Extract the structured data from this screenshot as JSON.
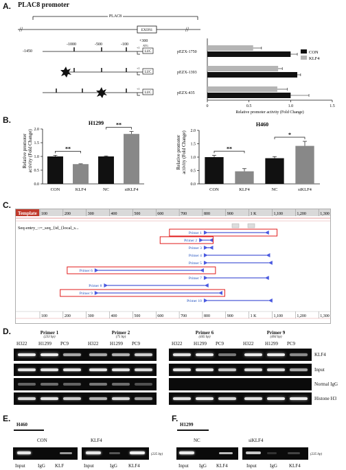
{
  "panel_a": {
    "label": "A.",
    "title": "PLAC8 promoter",
    "gene_label": "PLAC8",
    "exon_label": "EXON1",
    "positions": [
      "-1450",
      "-1000",
      "-500",
      "-100",
      "+300"
    ],
    "atg_label": "ATG",
    "tss_label": "+1",
    "luc_label": "LUC",
    "constructs": [
      "pEZX-1750",
      "pEZX-1393",
      "pEZX-435"
    ],
    "chart": {
      "xlabel": "Relative promoter activity (Fold Change)",
      "xticks": [
        "0",
        "0.5",
        "1.0",
        "1.5"
      ],
      "legend": [
        "CON",
        "KLF4"
      ]
    }
  },
  "panel_b": {
    "label": "B.",
    "ylabel_line1": "Relative promoter",
    "ylabel_line2": "activity (Fold Change)",
    "sig": "**",
    "sig2": "*"
  },
  "panel_c": {
    "label": "C.",
    "template_label": "Template",
    "ruler_ticks": [
      "100",
      "200",
      "300",
      "400",
      "500",
      "600",
      "700",
      "800",
      "900",
      "1 K",
      "1,100",
      "1,200",
      "1,300"
    ],
    "seq_entry": "Seq-entry_::=_seq_{id_{local_s...",
    "primers": [
      "Primer 1",
      "Primer 2",
      "Primer 3",
      "Primer 4",
      "Primer 5",
      "Primer 6",
      "Primer 7",
      "Primer 8",
      "Primer 9",
      "Primer 10"
    ]
  },
  "panel_d": {
    "label": "D.",
    "groups": [
      {
        "title": "Primer 1",
        "size": "(233 bp)"
      },
      {
        "title": "Primer 2",
        "size": "(75 bp)"
      },
      {
        "title": "Primer 6",
        "size": "(445 bp)"
      },
      {
        "title": "Primer 9",
        "size": "(404 bp)"
      }
    ],
    "lanes": [
      "H322",
      "H1299",
      "PC9"
    ],
    "rows": [
      "KLF4",
      "Input",
      "Normal IgG",
      "Histone H3"
    ]
  },
  "panel_e": {
    "label": "E.",
    "cell": "H460",
    "left_title": "CON",
    "right_title": "KLF4",
    "left_lanes": [
      "Input",
      "IgG",
      "KLF"
    ],
    "right_lanes": [
      "Input",
      "IgG",
      "KLF4"
    ],
    "size": "(235 bp)"
  },
  "panel_f": {
    "label": "F.",
    "cell": "H1299",
    "left_title": "NC",
    "right_title": "siKLF4",
    "left_lanes": [
      "Input",
      "IgG",
      "KLF4"
    ],
    "right_lanes": [
      "Input",
      "IgG",
      "KLF4"
    ],
    "size": "(235 bp)"
  },
  "chart_data": [
    {
      "type": "bar",
      "orientation": "horizontal",
      "categories": [
        "pEZX-1750",
        "pEZX-1393",
        "pEZX-435"
      ],
      "series": [
        {
          "name": "CON",
          "values": [
            1.0,
            1.08,
            1.0
          ],
          "errors": [
            0.08,
            0.04,
            0.22
          ]
        },
        {
          "name": "KLF4",
          "values": [
            0.55,
            0.85,
            0.84
          ],
          "errors": [
            0.1,
            0.05,
            0.12
          ]
        }
      ],
      "xlabel": "Relative promoter activity (Fold Change)",
      "xlim": [
        0,
        1.5
      ],
      "legend": "top-right"
    },
    {
      "type": "bar",
      "title": "H1299",
      "categories": [
        "CON",
        "KLF4",
        "NC",
        "siKLF4"
      ],
      "values": [
        1.0,
        0.72,
        1.0,
        1.82
      ],
      "errors": [
        0.04,
        0.01,
        0.02,
        0.09
      ],
      "colors": [
        "#111111",
        "#888888",
        "#111111",
        "#888888"
      ],
      "ylabel": "Relative promoter activity (Fold Change)",
      "ylim": [
        0,
        2.0
      ],
      "yticks": [
        "0.0",
        "0.5",
        "1.0",
        "1.5",
        "2.0"
      ]
    },
    {
      "type": "bar",
      "title": "H460",
      "categories": [
        "CON",
        "KLF4",
        "NC",
        "siKLF4"
      ],
      "values": [
        1.0,
        0.47,
        0.96,
        1.42
      ],
      "errors": [
        0.07,
        0.1,
        0.06,
        0.17
      ],
      "colors": [
        "#111111",
        "#888888",
        "#111111",
        "#888888"
      ],
      "ylabel": "Relative promoter activity (Fold Change)",
      "ylim": [
        0,
        2.0
      ],
      "yticks": [
        "0.0",
        "0.5",
        "1.0",
        "1.5",
        "2.0"
      ]
    }
  ]
}
